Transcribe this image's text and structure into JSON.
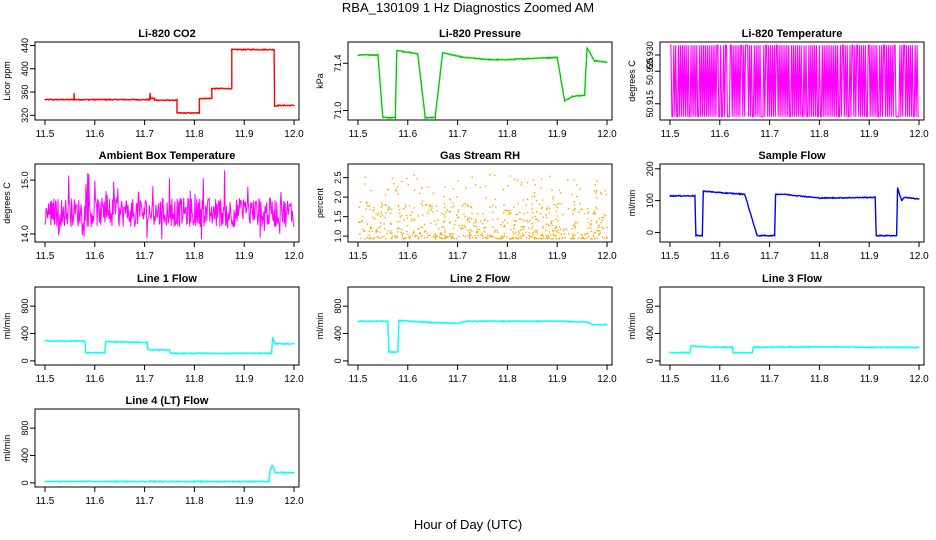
{
  "figure": {
    "title": "RBA_130109  1 Hz Diagnostics Zoomed AM",
    "xlabel": "Hour of Day (UTC)"
  },
  "chart_data": [
    {
      "type": "line",
      "title": "Li-820 CO2",
      "ylabel": "Licor ppm",
      "color": "#ff0000",
      "xlim": [
        11.48,
        12.01
      ],
      "ylim": [
        312,
        446
      ],
      "xticks": [
        "11.5",
        "11.6",
        "11.7",
        "11.8",
        "11.9",
        "12.0"
      ],
      "yticks": [
        320,
        360,
        400,
        440
      ],
      "series": [
        {
          "x": [
            11.5,
            11.558,
            11.5585,
            11.559,
            11.71,
            11.711,
            11.712,
            11.72,
            11.72,
            11.765,
            11.765,
            11.81,
            11.81,
            11.835,
            11.835,
            11.875,
            11.875,
            11.96,
            11.961,
            11.97,
            12.0
          ],
          "y": [
            347,
            347,
            358,
            347,
            347,
            358,
            349,
            349,
            346,
            346,
            324,
            324,
            349,
            349,
            366,
            366,
            433,
            433,
            336,
            337,
            337
          ]
        }
      ]
    },
    {
      "type": "line",
      "title": "Li-820 Pressure",
      "ylabel": "kPa",
      "color": "#00cc00",
      "xlim": [
        11.48,
        12.01
      ],
      "ylim": [
        70.92,
        71.58
      ],
      "xticks": [
        "11.5",
        "11.6",
        "11.7",
        "11.8",
        "11.9",
        "12.0"
      ],
      "yticks": [
        "71.0",
        "71.4"
      ],
      "ytick_values": [
        71.0,
        71.4
      ],
      "series": [
        {
          "x": [
            11.5,
            11.54,
            11.55,
            11.575,
            11.578,
            11.59,
            11.62,
            11.635,
            11.655,
            11.67,
            11.71,
            11.74,
            11.77,
            11.8,
            11.84,
            11.9,
            11.915,
            11.93,
            11.955,
            11.96,
            11.975,
            12.0
          ],
          "y": [
            71.47,
            71.47,
            70.94,
            70.94,
            71.51,
            71.5,
            71.48,
            70.94,
            70.94,
            71.49,
            71.45,
            71.44,
            71.43,
            71.43,
            71.44,
            71.45,
            71.08,
            71.12,
            71.13,
            71.53,
            71.42,
            71.41
          ]
        }
      ]
    },
    {
      "type": "line",
      "title": "Li-820 Temperature",
      "ylabel": "degrees C",
      "color": "#ff00ff",
      "xlim": [
        11.48,
        12.01
      ],
      "ylim": [
        50.91,
        50.934
      ],
      "xticks": [
        "11.5",
        "11.6",
        "11.7",
        "11.8",
        "11.9",
        "12.0"
      ],
      "yticks": [
        "50.915",
        "50.925",
        "50.930"
      ],
      "ytick_values": [
        50.915,
        50.925,
        50.93
      ],
      "note": "signal alternates rapidly between 50.911 and 50.933 (1 Hz quantization noise)",
      "series": [
        {
          "noise_range": [
            50.911,
            50.933
          ],
          "x_range": [
            11.5,
            12.0
          ]
        }
      ]
    },
    {
      "type": "line",
      "title": "Ambient Box Temperature",
      "ylabel": "degrees C",
      "color": "#ff00ff",
      "xlim": [
        11.48,
        12.01
      ],
      "ylim": [
        13.85,
        15.3
      ],
      "xticks": [
        "11.5",
        "11.6",
        "11.7",
        "11.8",
        "11.9",
        "12.0"
      ],
      "yticks": [
        "14.0",
        "15.0"
      ],
      "ytick_values": [
        14.0,
        15.0
      ],
      "note": "noisy signal centred near 14.4 (range about 13.9 to 15.2)",
      "series": [
        {
          "noise_center": 14.4,
          "noise_range": [
            13.9,
            15.2
          ],
          "x_range": [
            11.5,
            12.0
          ]
        }
      ]
    },
    {
      "type": "scatter",
      "title": "Gas Stream RH",
      "ylabel": "percent",
      "color": "#ffa500",
      "xlim": [
        11.48,
        12.01
      ],
      "ylim": [
        0.85,
        2.85
      ],
      "xticks": [
        "11.5",
        "11.6",
        "11.7",
        "11.8",
        "11.9",
        "12.0"
      ],
      "yticks": [
        "1.0",
        "1.5",
        "2.0",
        "2.5"
      ],
      "ytick_values": [
        1.0,
        1.5,
        2.0,
        2.5
      ],
      "note": "dense noisy points between about 1.0 and 2.5",
      "series": [
        {
          "noise_center": 1.45,
          "noise_range": [
            0.95,
            2.6
          ],
          "x_range": [
            11.5,
            12.0
          ]
        }
      ]
    },
    {
      "type": "line",
      "title": "Sample Flow",
      "ylabel": "ml/min",
      "color": "#0000ff",
      "xlim": [
        11.48,
        12.01
      ],
      "ylim": [
        -30,
        215
      ],
      "xticks": [
        "11.5",
        "11.6",
        "11.7",
        "11.8",
        "11.9",
        "12.0"
      ],
      "yticks": [
        0,
        100,
        200
      ],
      "series": [
        {
          "x": [
            11.5,
            11.55,
            11.552,
            11.565,
            11.567,
            11.6,
            11.65,
            11.675,
            11.677,
            11.71,
            11.712,
            11.73,
            11.8,
            11.9,
            11.912,
            11.914,
            11.955,
            11.957,
            11.965,
            11.97,
            12.0
          ],
          "y": [
            115,
            115,
            -10,
            -10,
            130,
            125,
            120,
            -10,
            -10,
            -10,
            120,
            120,
            108,
            110,
            110,
            -10,
            -10,
            140,
            100,
            110,
            105
          ]
        }
      ]
    },
    {
      "type": "line",
      "title": "Line 1 Flow",
      "ylabel": "ml/min",
      "color": "#00ffff",
      "xlim": [
        11.48,
        12.01
      ],
      "ylim": [
        -60,
        1080
      ],
      "xticks": [
        "11.5",
        "11.6",
        "11.7",
        "11.8",
        "11.9",
        "12.0"
      ],
      "yticks": [
        0,
        400,
        800
      ],
      "series": [
        {
          "x": [
            11.5,
            11.58,
            11.582,
            11.62,
            11.622,
            11.705,
            11.707,
            11.75,
            11.752,
            11.955,
            11.957,
            11.962,
            12.0
          ],
          "y": [
            290,
            290,
            120,
            120,
            280,
            270,
            160,
            160,
            110,
            110,
            340,
            250,
            250
          ]
        }
      ]
    },
    {
      "type": "line",
      "title": "Line 2 Flow",
      "ylabel": "ml/min",
      "color": "#00ffff",
      "xlim": [
        11.48,
        12.01
      ],
      "ylim": [
        -60,
        1080
      ],
      "xticks": [
        "11.5",
        "11.6",
        "11.7",
        "11.8",
        "11.9",
        "12.0"
      ],
      "yticks": [
        0,
        400,
        800
      ],
      "series": [
        {
          "x": [
            11.5,
            11.56,
            11.562,
            11.58,
            11.582,
            11.65,
            11.7,
            11.72,
            11.8,
            11.9,
            11.96,
            11.97,
            12.0
          ],
          "y": [
            580,
            580,
            130,
            130,
            590,
            560,
            550,
            580,
            580,
            580,
            570,
            530,
            530
          ]
        }
      ]
    },
    {
      "type": "line",
      "title": "Line 3 Flow",
      "ylabel": "ml/min",
      "color": "#00ffff",
      "xlim": [
        11.48,
        12.01
      ],
      "ylim": [
        -60,
        1080
      ],
      "xticks": [
        "11.5",
        "11.6",
        "11.7",
        "11.8",
        "11.9",
        "12.0"
      ],
      "yticks": [
        0,
        400,
        800
      ],
      "series": [
        {
          "x": [
            11.5,
            11.54,
            11.542,
            11.58,
            11.625,
            11.627,
            11.665,
            11.667,
            11.8,
            11.9,
            12.0
          ],
          "y": [
            120,
            120,
            220,
            200,
            200,
            120,
            120,
            200,
            205,
            200,
            195
          ]
        }
      ]
    },
    {
      "type": "line",
      "title": "Line 4 (LT) Flow",
      "ylabel": "ml/min",
      "color": "#00ffff",
      "xlim": [
        11.48,
        12.01
      ],
      "ylim": [
        -60,
        1080
      ],
      "xticks": [
        "11.5",
        "11.6",
        "11.7",
        "11.8",
        "11.9",
        "12.0"
      ],
      "yticks": [
        0,
        400,
        800
      ],
      "series": [
        {
          "x": [
            11.5,
            11.95,
            11.952,
            11.956,
            11.96,
            11.962,
            12.0
          ],
          "y": [
            20,
            20,
            180,
            260,
            200,
            150,
            150
          ]
        }
      ]
    }
  ]
}
